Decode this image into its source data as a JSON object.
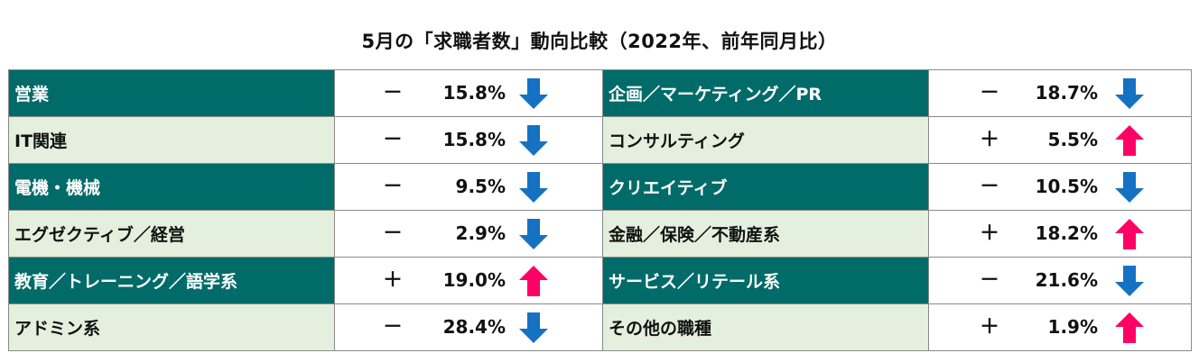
{
  "title": "5月の「求職者数」動向比較（2022年、前年同月比）",
  "chart_data": {
    "type": "table",
    "title": "5月の「求職者数」動向比較（2022年、前年同月比）",
    "rows": [
      {
        "name": "営業",
        "sign": "－",
        "value_label": "15.8%",
        "value": -15.8,
        "direction": "down",
        "style": "dark"
      },
      {
        "name": "IT関連",
        "sign": "－",
        "value_label": "15.8%",
        "value": -15.8,
        "direction": "down",
        "style": "light"
      },
      {
        "name": "電機・機械",
        "sign": "－",
        "value_label": "9.5%",
        "value": -9.5,
        "direction": "down",
        "style": "dark"
      },
      {
        "name": "エグゼクティブ／経営",
        "sign": "－",
        "value_label": "2.9%",
        "value": -2.9,
        "direction": "down",
        "style": "light"
      },
      {
        "name": "教育／トレーニング／語学系",
        "sign": "＋",
        "value_label": "19.0%",
        "value": 19.0,
        "direction": "up",
        "style": "dark"
      },
      {
        "name": "アドミン系",
        "sign": "－",
        "value_label": "28.4%",
        "value": -28.4,
        "direction": "down",
        "style": "light"
      },
      {
        "name": "企画／マーケティング／PR",
        "sign": "－",
        "value_label": "18.7%",
        "value": -18.7,
        "direction": "down",
        "style": "dark"
      },
      {
        "name": "コンサルティング",
        "sign": "＋",
        "value_label": "5.5%",
        "value": 5.5,
        "direction": "up",
        "style": "light"
      },
      {
        "name": "クリエイティブ",
        "sign": "－",
        "value_label": "10.5%",
        "value": -10.5,
        "direction": "down",
        "style": "dark"
      },
      {
        "name": "金融／保険／不動産系",
        "sign": "＋",
        "value_label": "18.2%",
        "value": 18.2,
        "direction": "up",
        "style": "light"
      },
      {
        "name": "サービス／リテール系",
        "sign": "－",
        "value_label": "21.6%",
        "value": -21.6,
        "direction": "down",
        "style": "dark"
      },
      {
        "name": "その他の職種",
        "sign": "＋",
        "value_label": "1.9%",
        "value": 1.9,
        "direction": "up",
        "style": "light"
      }
    ]
  },
  "colors": {
    "dark_cell": "#006b68",
    "light_cell": "#e4efdd",
    "arrow_down": "#1572c2",
    "arrow_up": "#ff0066"
  }
}
